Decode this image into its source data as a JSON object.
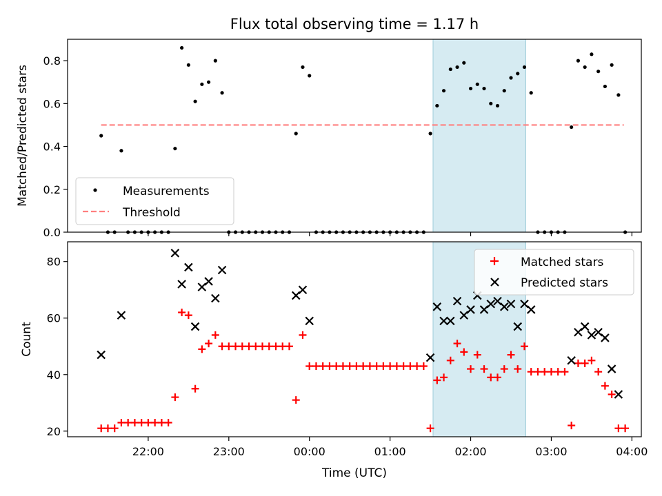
{
  "chart_data": [
    {
      "type": "scatter",
      "title": "Flux total observing time = 1.17 h",
      "ylabel": "Matched/Predicted stars",
      "ylim": [
        0,
        0.9
      ],
      "yticks": [
        "0.0",
        "0.2",
        "0.4",
        "0.6",
        "0.8"
      ],
      "x_tick_labels": [],
      "highlight_span": [
        "01:32",
        "02:41"
      ],
      "threshold": {
        "value": 0.5,
        "x_range": [
          "21:25",
          "03:54"
        ],
        "color": "#ff7f7f"
      },
      "legend": {
        "position": "lower-left",
        "entries": [
          "Measurements",
          "Threshold"
        ]
      },
      "series": [
        {
          "name": "Measurements",
          "marker": "dot",
          "color": "#000000",
          "points": [
            [
              "21:25",
              0.45
            ],
            [
              "21:30",
              0.0
            ],
            [
              "21:35",
              0.0
            ],
            [
              "21:40",
              0.38
            ],
            [
              "21:45",
              0.0
            ],
            [
              "21:50",
              0.0
            ],
            [
              "21:55",
              0.0
            ],
            [
              "22:00",
              0.0
            ],
            [
              "22:05",
              0.0
            ],
            [
              "22:10",
              0.0
            ],
            [
              "22:15",
              0.0
            ],
            [
              "22:20",
              0.39
            ],
            [
              "22:25",
              0.86
            ],
            [
              "22:30",
              0.78
            ],
            [
              "22:35",
              0.61
            ],
            [
              "22:40",
              0.69
            ],
            [
              "22:45",
              0.7
            ],
            [
              "22:50",
              0.8
            ],
            [
              "22:55",
              0.65
            ],
            [
              "23:00",
              0.0
            ],
            [
              "23:05",
              0.0
            ],
            [
              "23:10",
              0.0
            ],
            [
              "23:15",
              0.0
            ],
            [
              "23:20",
              0.0
            ],
            [
              "23:25",
              0.0
            ],
            [
              "23:30",
              0.0
            ],
            [
              "23:35",
              0.0
            ],
            [
              "23:40",
              0.0
            ],
            [
              "23:45",
              0.0
            ],
            [
              "23:50",
              0.46
            ],
            [
              "23:55",
              0.77
            ],
            [
              "00:00",
              0.73
            ],
            [
              "00:05",
              0.0
            ],
            [
              "00:10",
              0.0
            ],
            [
              "00:15",
              0.0
            ],
            [
              "00:20",
              0.0
            ],
            [
              "00:25",
              0.0
            ],
            [
              "00:30",
              0.0
            ],
            [
              "00:35",
              0.0
            ],
            [
              "00:40",
              0.0
            ],
            [
              "00:45",
              0.0
            ],
            [
              "00:50",
              0.0
            ],
            [
              "00:55",
              0.0
            ],
            [
              "01:00",
              0.0
            ],
            [
              "01:05",
              0.0
            ],
            [
              "01:10",
              0.0
            ],
            [
              "01:15",
              0.0
            ],
            [
              "01:20",
              0.0
            ],
            [
              "01:25",
              0.0
            ],
            [
              "01:30",
              0.46
            ],
            [
              "01:35",
              0.59
            ],
            [
              "01:40",
              0.66
            ],
            [
              "01:45",
              0.76
            ],
            [
              "01:50",
              0.77
            ],
            [
              "01:55",
              0.79
            ],
            [
              "02:00",
              0.67
            ],
            [
              "02:05",
              0.69
            ],
            [
              "02:10",
              0.67
            ],
            [
              "02:15",
              0.6
            ],
            [
              "02:20",
              0.59
            ],
            [
              "02:25",
              0.66
            ],
            [
              "02:30",
              0.72
            ],
            [
              "02:35",
              0.74
            ],
            [
              "02:40",
              0.77
            ],
            [
              "02:45",
              0.65
            ],
            [
              "02:50",
              0.0
            ],
            [
              "02:55",
              0.0
            ],
            [
              "03:00",
              0.0
            ],
            [
              "03:05",
              0.0
            ],
            [
              "03:10",
              0.0
            ],
            [
              "03:15",
              0.49
            ],
            [
              "03:20",
              0.8
            ],
            [
              "03:25",
              0.77
            ],
            [
              "03:30",
              0.83
            ],
            [
              "03:35",
              0.75
            ],
            [
              "03:40",
              0.68
            ],
            [
              "03:45",
              0.78
            ],
            [
              "03:50",
              0.64
            ],
            [
              "03:55",
              0.0
            ]
          ]
        }
      ]
    },
    {
      "type": "scatter",
      "xlabel": "Time (UTC)",
      "ylabel": "Count",
      "ylim": [
        18,
        87
      ],
      "yticks": [
        "20",
        "40",
        "60",
        "80"
      ],
      "xlim": [
        "21:00",
        "04:07"
      ],
      "x_tick_labels": [
        "22:00",
        "23:00",
        "00:00",
        "01:00",
        "02:00",
        "03:00",
        "04:00"
      ],
      "highlight_span": [
        "01:32",
        "02:41"
      ],
      "legend": {
        "position": "upper-right",
        "entries": [
          "Matched stars",
          "Predicted stars"
        ]
      },
      "series": [
        {
          "name": "Matched stars",
          "marker": "plus",
          "color": "#ff0000",
          "points": [
            [
              "21:25",
              21
            ],
            [
              "21:30",
              21
            ],
            [
              "21:35",
              21
            ],
            [
              "21:40",
              23
            ],
            [
              "21:45",
              23
            ],
            [
              "21:50",
              23
            ],
            [
              "21:55",
              23
            ],
            [
              "22:00",
              23
            ],
            [
              "22:05",
              23
            ],
            [
              "22:10",
              23
            ],
            [
              "22:15",
              23
            ],
            [
              "22:20",
              32
            ],
            [
              "22:25",
              62
            ],
            [
              "22:30",
              61
            ],
            [
              "22:35",
              35
            ],
            [
              "22:40",
              49
            ],
            [
              "22:45",
              51
            ],
            [
              "22:50",
              54
            ],
            [
              "22:55",
              50
            ],
            [
              "23:00",
              50
            ],
            [
              "23:05",
              50
            ],
            [
              "23:10",
              50
            ],
            [
              "23:15",
              50
            ],
            [
              "23:20",
              50
            ],
            [
              "23:25",
              50
            ],
            [
              "23:30",
              50
            ],
            [
              "23:35",
              50
            ],
            [
              "23:40",
              50
            ],
            [
              "23:45",
              50
            ],
            [
              "23:50",
              31
            ],
            [
              "23:55",
              54
            ],
            [
              "00:00",
              43
            ],
            [
              "00:05",
              43
            ],
            [
              "00:10",
              43
            ],
            [
              "00:15",
              43
            ],
            [
              "00:20",
              43
            ],
            [
              "00:25",
              43
            ],
            [
              "00:30",
              43
            ],
            [
              "00:35",
              43
            ],
            [
              "00:40",
              43
            ],
            [
              "00:45",
              43
            ],
            [
              "00:50",
              43
            ],
            [
              "00:55",
              43
            ],
            [
              "01:00",
              43
            ],
            [
              "01:05",
              43
            ],
            [
              "01:10",
              43
            ],
            [
              "01:15",
              43
            ],
            [
              "01:20",
              43
            ],
            [
              "01:25",
              43
            ],
            [
              "01:30",
              21
            ],
            [
              "01:35",
              38
            ],
            [
              "01:40",
              39
            ],
            [
              "01:45",
              45
            ],
            [
              "01:50",
              51
            ],
            [
              "01:55",
              48
            ],
            [
              "02:00",
              42
            ],
            [
              "02:05",
              47
            ],
            [
              "02:10",
              42
            ],
            [
              "02:15",
              39
            ],
            [
              "02:20",
              39
            ],
            [
              "02:25",
              42
            ],
            [
              "02:30",
              47
            ],
            [
              "02:35",
              42
            ],
            [
              "02:40",
              50
            ],
            [
              "02:45",
              41
            ],
            [
              "02:50",
              41
            ],
            [
              "02:55",
              41
            ],
            [
              "03:00",
              41
            ],
            [
              "03:05",
              41
            ],
            [
              "03:10",
              41
            ],
            [
              "03:15",
              22
            ],
            [
              "03:20",
              44
            ],
            [
              "03:25",
              44
            ],
            [
              "03:30",
              45
            ],
            [
              "03:35",
              41
            ],
            [
              "03:40",
              36
            ],
            [
              "03:45",
              33
            ],
            [
              "03:50",
              21
            ],
            [
              "03:55",
              21
            ]
          ]
        },
        {
          "name": "Predicted stars",
          "marker": "x",
          "color": "#000000",
          "points": [
            [
              "21:25",
              47
            ],
            [
              "21:40",
              61
            ],
            [
              "22:20",
              83
            ],
            [
              "22:25",
              72
            ],
            [
              "22:30",
              78
            ],
            [
              "22:35",
              57
            ],
            [
              "22:40",
              71
            ],
            [
              "22:45",
              73
            ],
            [
              "22:50",
              67
            ],
            [
              "22:55",
              77
            ],
            [
              "23:50",
              68
            ],
            [
              "23:55",
              70
            ],
            [
              "00:00",
              59
            ],
            [
              "01:30",
              46
            ],
            [
              "01:35",
              64
            ],
            [
              "01:40",
              59
            ],
            [
              "01:45",
              59
            ],
            [
              "01:50",
              66
            ],
            [
              "01:55",
              61
            ],
            [
              "02:00",
              63
            ],
            [
              "02:05",
              68
            ],
            [
              "02:10",
              63
            ],
            [
              "02:15",
              65
            ],
            [
              "02:20",
              66
            ],
            [
              "02:25",
              64
            ],
            [
              "02:30",
              65
            ],
            [
              "02:35",
              57
            ],
            [
              "02:40",
              65
            ],
            [
              "02:45",
              63
            ],
            [
              "03:15",
              45
            ],
            [
              "03:20",
              55
            ],
            [
              "03:25",
              57
            ],
            [
              "03:30",
              54
            ],
            [
              "03:35",
              55
            ],
            [
              "03:40",
              53
            ],
            [
              "03:45",
              42
            ],
            [
              "03:50",
              33
            ]
          ]
        }
      ]
    }
  ]
}
